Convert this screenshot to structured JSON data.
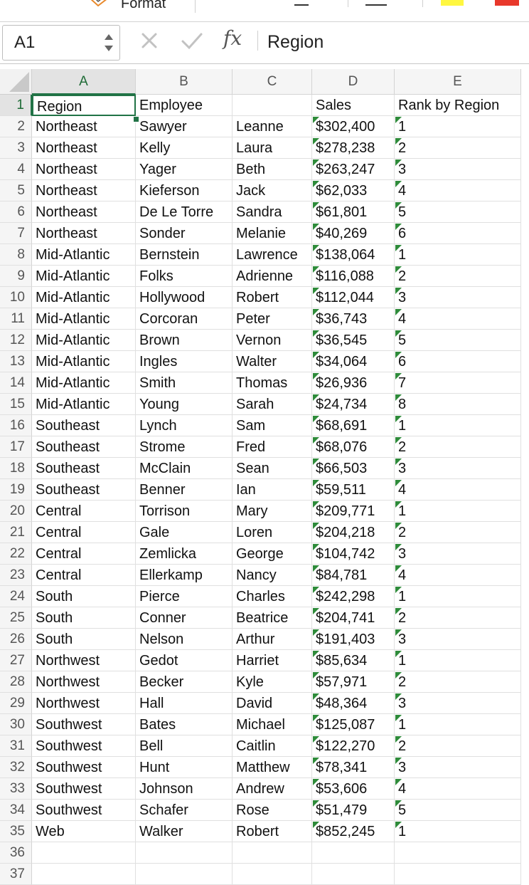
{
  "toolbar": {
    "format_label": "Format"
  },
  "formula_bar": {
    "name_box": "A1",
    "fx_label": "fx",
    "content": "Region"
  },
  "columns": [
    "A",
    "B",
    "C",
    "D",
    "E"
  ],
  "header_row": [
    "Region",
    "Employee",
    "",
    "Sales",
    "Rank by Region"
  ],
  "rows": [
    [
      "Northeast",
      "Sawyer",
      "Leanne",
      "$302,400",
      "1"
    ],
    [
      "Northeast",
      "Kelly",
      "Laura",
      "$278,238",
      "2"
    ],
    [
      "Northeast",
      "Yager",
      "Beth",
      "$263,247",
      "3"
    ],
    [
      "Northeast",
      "Kieferson",
      "Jack",
      "$62,033",
      "4"
    ],
    [
      "Northeast",
      "De Le Torre",
      "Sandra",
      "$61,801",
      "5"
    ],
    [
      "Northeast",
      "Sonder",
      "Melanie",
      "$40,269",
      "6"
    ],
    [
      "Mid-Atlantic",
      "Bernstein",
      "Lawrence",
      "$138,064",
      "1"
    ],
    [
      "Mid-Atlantic",
      "Folks",
      "Adrienne",
      "$116,088",
      "2"
    ],
    [
      "Mid-Atlantic",
      "Hollywood",
      "Robert",
      "$112,044",
      "3"
    ],
    [
      "Mid-Atlantic",
      "Corcoran",
      "Peter",
      "$36,743",
      "4"
    ],
    [
      "Mid-Atlantic",
      "Brown",
      "Vernon",
      "$36,545",
      "5"
    ],
    [
      "Mid-Atlantic",
      "Ingles",
      "Walter",
      "$34,064",
      "6"
    ],
    [
      "Mid-Atlantic",
      "Smith",
      "Thomas",
      "$26,936",
      "7"
    ],
    [
      "Mid-Atlantic",
      "Young",
      "Sarah",
      "$24,734",
      "8"
    ],
    [
      "Southeast",
      "Lynch",
      "Sam",
      "$68,691",
      "1"
    ],
    [
      "Southeast",
      "Strome",
      "Fred",
      "$68,076",
      "2"
    ],
    [
      "Southeast",
      "McClain",
      "Sean",
      "$66,503",
      "3"
    ],
    [
      "Southeast",
      "Benner",
      "Ian",
      "$59,511",
      "4"
    ],
    [
      "Central",
      "Torrison",
      "Mary",
      "$209,771",
      "1"
    ],
    [
      "Central",
      "Gale",
      "Loren",
      "$204,218",
      "2"
    ],
    [
      "Central",
      "Zemlicka",
      "George",
      "$104,742",
      "3"
    ],
    [
      "Central",
      "Ellerkamp",
      "Nancy",
      "$84,781",
      "4"
    ],
    [
      "South",
      "Pierce",
      "Charles",
      "$242,298",
      "1"
    ],
    [
      "South",
      "Conner",
      "Beatrice",
      "$204,741",
      "2"
    ],
    [
      "South",
      "Nelson",
      "Arthur",
      "$191,403",
      "3"
    ],
    [
      "Northwest",
      "Gedot",
      "Harriet",
      "$85,634",
      "1"
    ],
    [
      "Northwest",
      "Becker",
      "Kyle",
      "$57,971",
      "2"
    ],
    [
      "Northwest",
      "Hall",
      "David",
      "$48,364",
      "3"
    ],
    [
      "Southwest",
      "Bates",
      "Michael",
      "$125,087",
      "1"
    ],
    [
      "Southwest",
      "Bell",
      "Caitlin",
      "$122,270",
      "2"
    ],
    [
      "Southwest",
      "Hunt",
      "Matthew",
      "$78,341",
      "3"
    ],
    [
      "Southwest",
      "Johnson",
      "Andrew",
      "$53,606",
      "4"
    ],
    [
      "Southwest",
      "Schafer",
      "Rose",
      "$51,479",
      "5"
    ],
    [
      "Web",
      "Walker",
      "Robert",
      "$852,245",
      "1"
    ]
  ],
  "row_numbers": [
    "1",
    "2",
    "3",
    "4",
    "5",
    "6",
    "7",
    "8",
    "9",
    "10",
    "11",
    "12",
    "13",
    "14",
    "15",
    "16",
    "17",
    "18",
    "19",
    "20",
    "21",
    "22",
    "23",
    "24",
    "25",
    "26",
    "27",
    "28",
    "29",
    "30",
    "31",
    "32",
    "33",
    "34",
    "35",
    "36",
    "37"
  ],
  "colors": {
    "selection": "#217346",
    "error_flag": "#2e8b3a",
    "swatch_yellow": "#fff740",
    "swatch_red": "#e8382b"
  }
}
